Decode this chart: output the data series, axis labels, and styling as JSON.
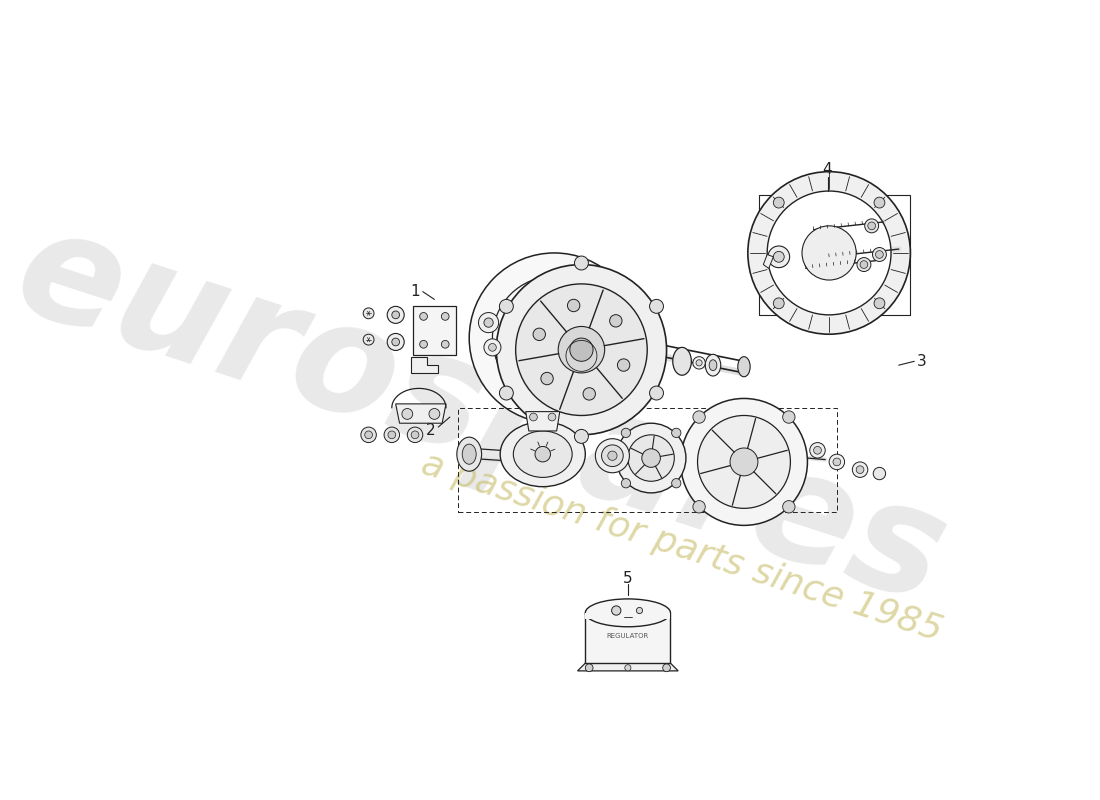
{
  "bg_color": "#ffffff",
  "line_color": "#222222",
  "watermark_text1": "eurospares",
  "watermark_text2": "a passion for parts since 1985",
  "watermark_color1": "#c0c0c0",
  "watermark_color2": "#c8bc6a",
  "figsize": [
    11.0,
    8.0
  ],
  "dpi": 100,
  "xlim": [
    0,
    1100
  ],
  "ylim": [
    0,
    800
  ]
}
